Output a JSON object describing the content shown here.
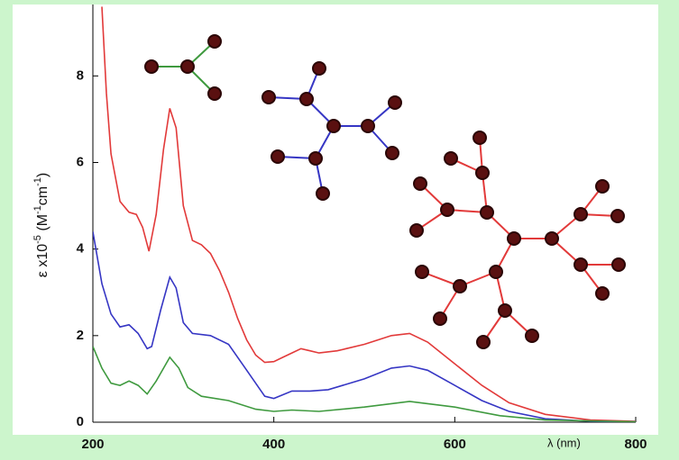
{
  "chart_data": {
    "type": "line",
    "x_label": "λ (nm)",
    "y_label_parts": [
      "ε x10",
      "-5",
      " (M",
      "-1",
      "cm",
      "-1",
      ")"
    ],
    "xlim": [
      200,
      800
    ],
    "xticks": [
      200,
      400,
      600,
      800
    ],
    "ylim": [
      0,
      9.65
    ],
    "yticks": [
      0,
      2,
      4,
      6,
      8
    ],
    "series": [
      {
        "color": "#e23a3a",
        "x": [
          210,
          215,
          220,
          230,
          240,
          248,
          255,
          262,
          270,
          278,
          285,
          292,
          300,
          310,
          320,
          330,
          340,
          350,
          360,
          370,
          380,
          390,
          400,
          410,
          420,
          430,
          440,
          450,
          470,
          500,
          530,
          550,
          570,
          600,
          630,
          660,
          700,
          750,
          800
        ],
        "values": [
          9.6,
          7.6,
          6.2,
          5.1,
          4.85,
          4.8,
          4.5,
          3.95,
          4.8,
          6.3,
          7.25,
          6.8,
          5.0,
          4.2,
          4.1,
          3.9,
          3.5,
          3.0,
          2.4,
          1.9,
          1.55,
          1.38,
          1.4,
          1.5,
          1.6,
          1.7,
          1.65,
          1.6,
          1.65,
          1.8,
          2.0,
          2.05,
          1.85,
          1.35,
          0.85,
          0.45,
          0.18,
          0.05,
          0.02
        ]
      },
      {
        "color": "#3636c4",
        "x": [
          200,
          210,
          220,
          230,
          240,
          250,
          260,
          265,
          275,
          285,
          292,
          300,
          310,
          330,
          350,
          370,
          390,
          400,
          420,
          440,
          460,
          500,
          530,
          550,
          570,
          600,
          630,
          660,
          700,
          750,
          800
        ],
        "values": [
          4.4,
          3.2,
          2.5,
          2.2,
          2.25,
          2.05,
          1.7,
          1.75,
          2.6,
          3.35,
          3.1,
          2.3,
          2.05,
          2.0,
          1.8,
          1.2,
          0.6,
          0.55,
          0.72,
          0.72,
          0.75,
          1.0,
          1.25,
          1.3,
          1.2,
          0.85,
          0.5,
          0.25,
          0.08,
          0.02,
          0.01
        ]
      },
      {
        "color": "#3f9a3f",
        "x": [
          200,
          210,
          220,
          230,
          240,
          250,
          260,
          270,
          285,
          295,
          305,
          320,
          350,
          380,
          400,
          420,
          450,
          500,
          550,
          600,
          650,
          700,
          800
        ],
        "values": [
          1.75,
          1.25,
          0.9,
          0.85,
          0.95,
          0.85,
          0.65,
          0.95,
          1.5,
          1.25,
          0.8,
          0.6,
          0.5,
          0.3,
          0.25,
          0.28,
          0.25,
          0.35,
          0.48,
          0.35,
          0.15,
          0.05,
          0.01
        ]
      }
    ]
  }
}
